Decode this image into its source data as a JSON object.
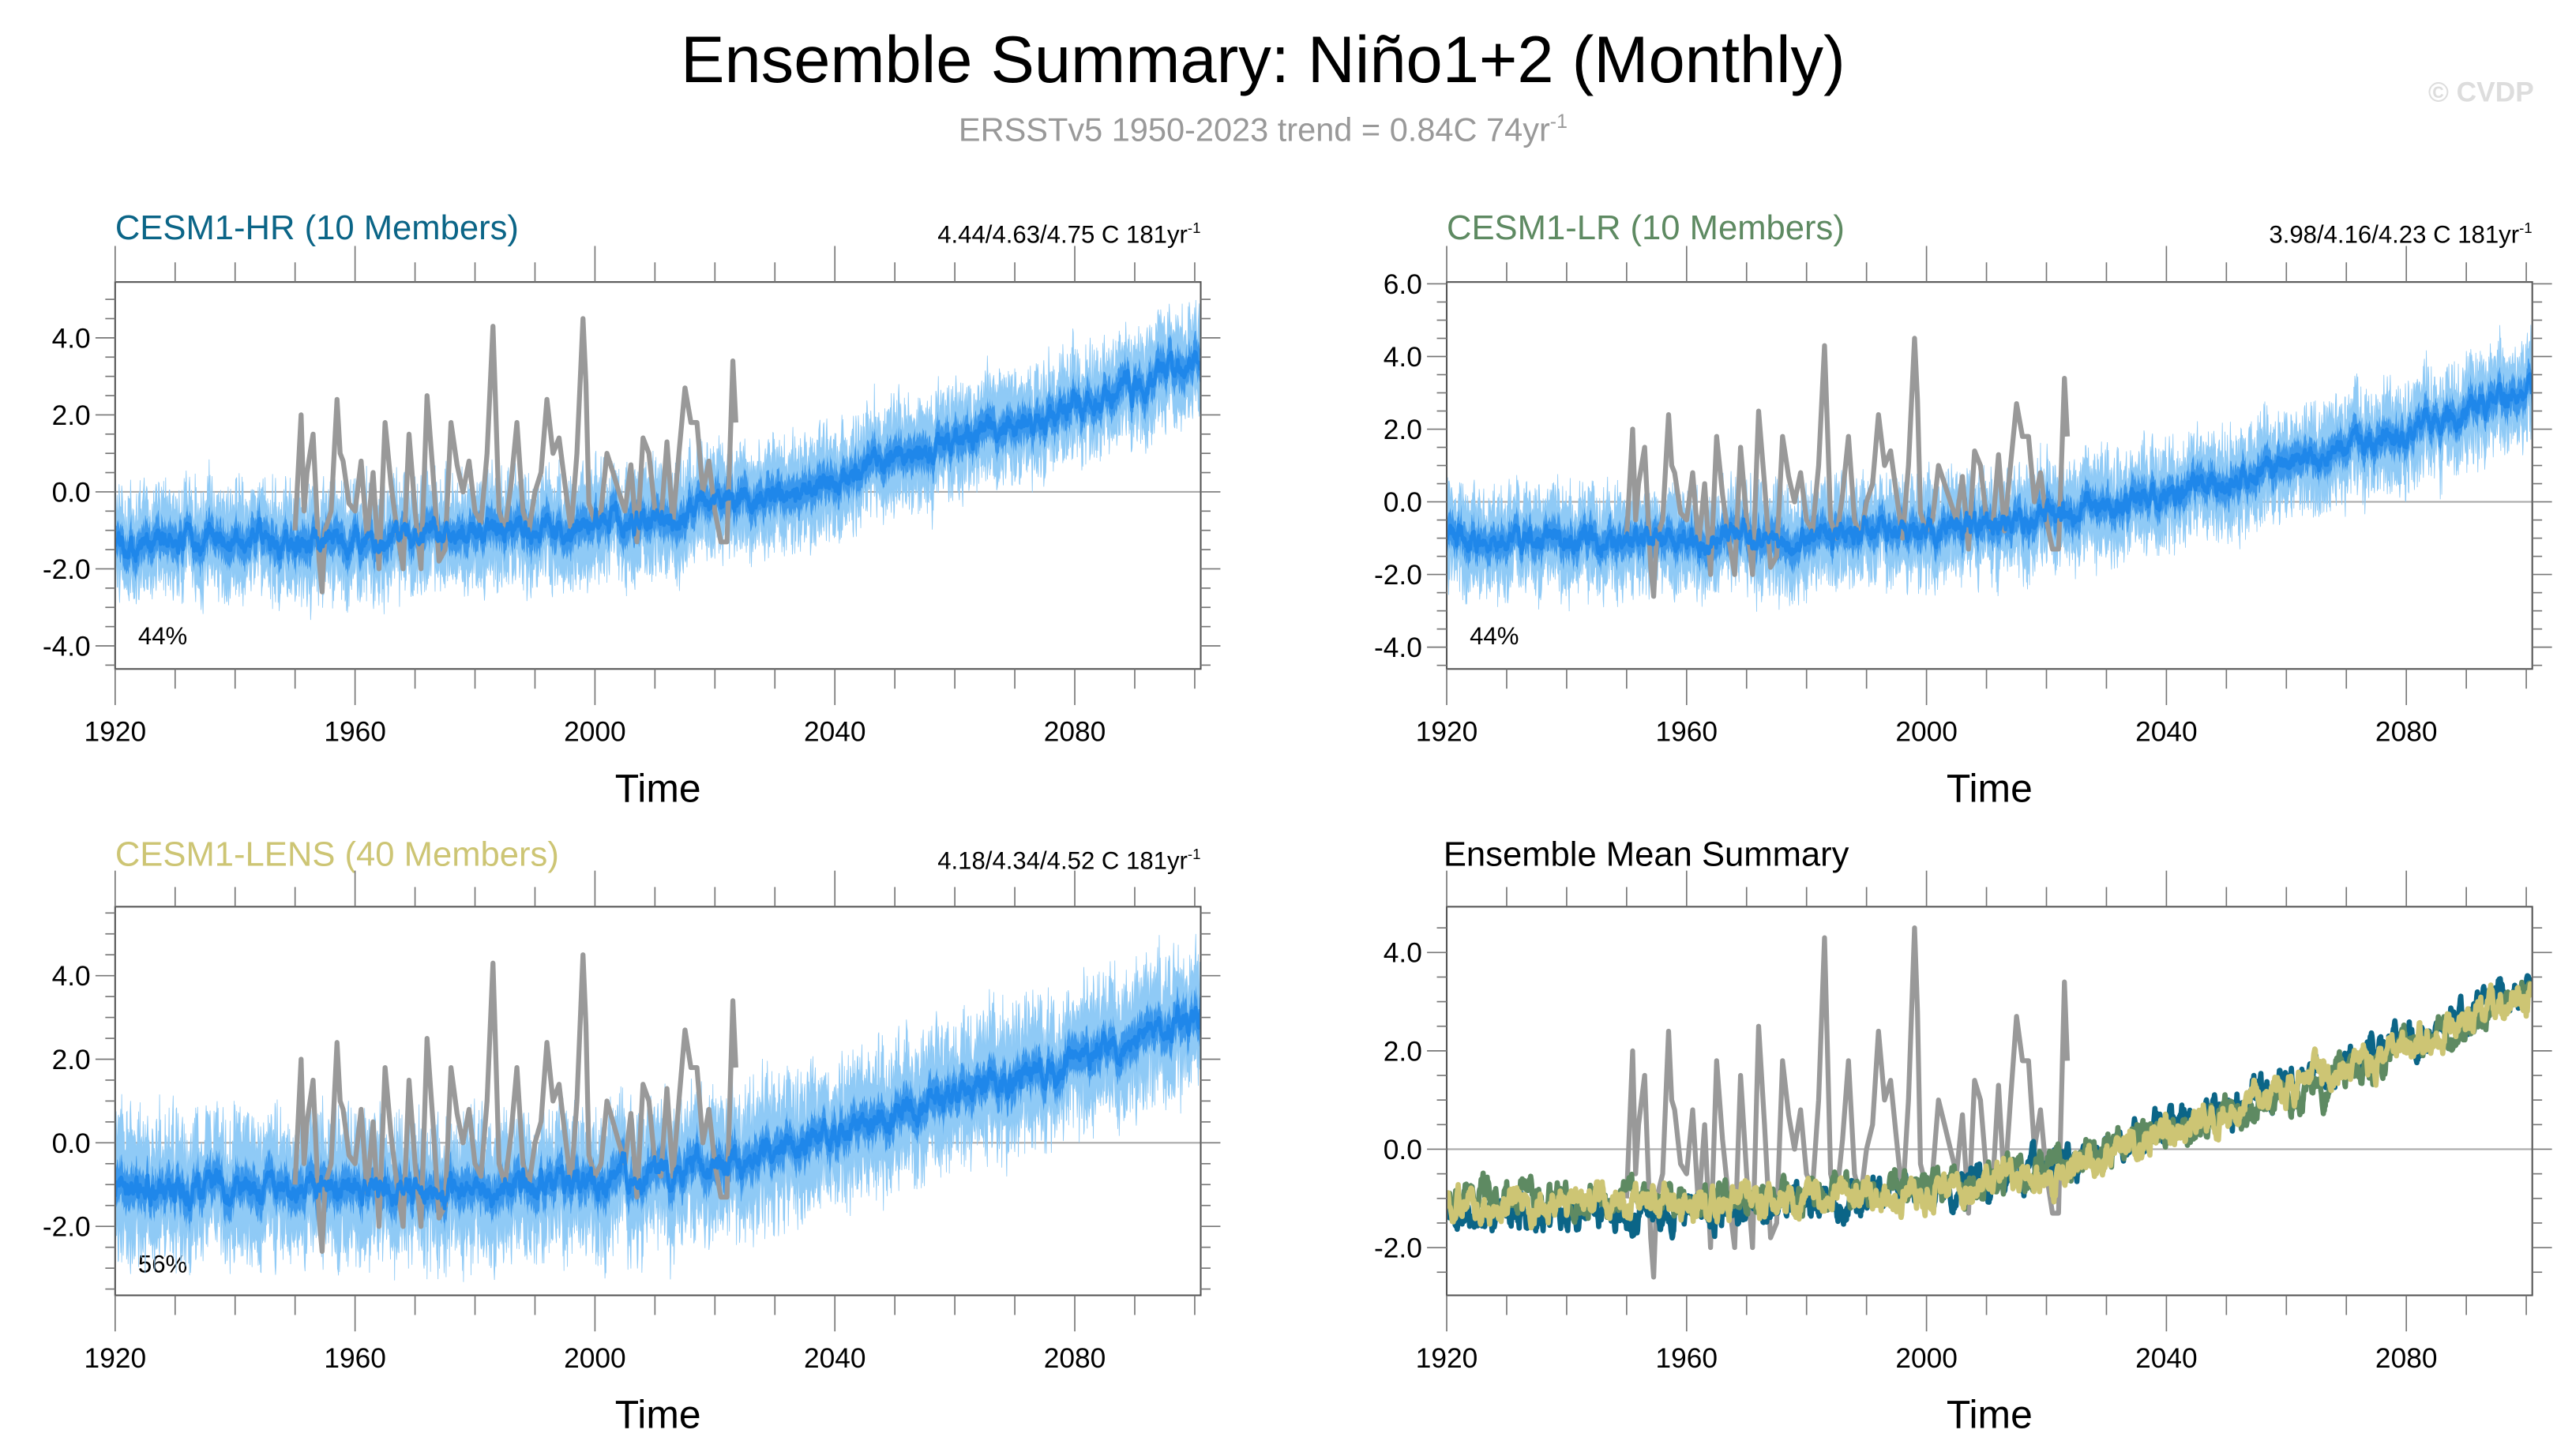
{
  "title": "Ensemble Summary: Niño1+2 (Monthly)",
  "subtitle": {
    "text": "ERSSTv5 1950-2023 trend = 0.84C 74yr",
    "exp": "-1"
  },
  "watermark": "© CVDP",
  "colors": {
    "obs": "#999999",
    "hr": "#0b6587",
    "lr": "#5e8a62",
    "lens": "#cdc574",
    "member_band": "#8fcaf6",
    "ens_mean": "#1f87ea"
  },
  "chart_data": [
    {
      "type": "line",
      "id": "hr",
      "title": "CESM1-HR (10 Members)",
      "right_text": "4.44/4.63/4.75 C 181yr",
      "right_exp": "-1",
      "annotation": "44%",
      "xlabel": "Time",
      "xlim": [
        1920,
        2101
      ],
      "ylim": [
        -4.6,
        5.45
      ],
      "xticks": [
        1920,
        1960,
        2000,
        2040,
        2080
      ],
      "yticks": [
        -4.0,
        -2.0,
        0.0,
        2.0,
        4.0
      ],
      "ensemble_mean_anchors": {
        "x": [
          1920,
          1950,
          1980,
          2000,
          2020,
          2040,
          2060,
          2080,
          2100
        ],
        "y": [
          -1.3,
          -1.2,
          -1.1,
          -0.9,
          -0.4,
          0.3,
          1.3,
          2.2,
          3.3
        ]
      },
      "member_spread": 1.0
    },
    {
      "type": "line",
      "id": "lr",
      "title": "CESM1-LR (10 Members)",
      "right_text": "3.98/4.16/4.23 C 181yr",
      "right_exp": "-1",
      "annotation": "44%",
      "xlabel": "Time",
      "xlim": [
        1920,
        2101
      ],
      "ylim": [
        -4.6,
        6.05
      ],
      "xticks": [
        1920,
        1960,
        2000,
        2040,
        2080
      ],
      "yticks": [
        -4.0,
        -2.0,
        0.0,
        2.0,
        4.0,
        6.0
      ],
      "ensemble_mean_anchors": {
        "x": [
          1920,
          1950,
          1980,
          2000,
          2020,
          2040,
          2060,
          2080,
          2100
        ],
        "y": [
          -1.0,
          -1.0,
          -1.0,
          -0.8,
          -0.4,
          0.2,
          1.0,
          1.9,
          3.0
        ]
      },
      "member_spread": 1.0
    },
    {
      "type": "line",
      "id": "lens",
      "title": "CESM1-LENS (40 Members)",
      "right_text": "4.18/4.34/4.52 C 181yr",
      "right_exp": "-1",
      "annotation": "56%",
      "xlabel": "Time",
      "xlim": [
        1920,
        2101
      ],
      "ylim": [
        -3.65,
        5.65
      ],
      "xticks": [
        1920,
        1960,
        2000,
        2040,
        2080
      ],
      "yticks": [
        -2.0,
        0.0,
        2.0,
        4.0
      ],
      "ensemble_mean_anchors": {
        "x": [
          1920,
          1950,
          1980,
          2000,
          2020,
          2040,
          2060,
          2080,
          2100
        ],
        "y": [
          -1.2,
          -1.1,
          -1.1,
          -0.9,
          -0.5,
          0.2,
          1.1,
          2.0,
          3.0
        ]
      },
      "member_spread": 1.2
    },
    {
      "type": "line",
      "id": "summary",
      "title": "Ensemble Mean Summary",
      "xlabel": "Time",
      "xlim": [
        1920,
        2101
      ],
      "ylim": [
        -2.97,
        4.93
      ],
      "xticks": [
        1920,
        1960,
        2000,
        2040,
        2080
      ],
      "yticks": [
        -2.0,
        0.0,
        2.0,
        4.0
      ],
      "series": [
        {
          "id": "hr",
          "anchors": {
            "x": [
              1920,
              1950,
              1980,
              2000,
              2020,
              2040,
              2060,
              2080,
              2100
            ],
            "y": [
              -1.4,
              -1.2,
              -1.1,
              -0.9,
              -0.4,
              0.4,
              1.3,
              2.2,
              3.3
            ]
          }
        },
        {
          "id": "lr",
          "anchors": {
            "x": [
              1920,
              1950,
              1980,
              2000,
              2020,
              2040,
              2060,
              2080,
              2100
            ],
            "y": [
              -1.0,
              -1.0,
              -1.0,
              -0.8,
              -0.4,
              0.3,
              1.1,
              2.0,
              3.1
            ]
          }
        },
        {
          "id": "lens",
          "anchors": {
            "x": [
              1920,
              1950,
              1980,
              2000,
              2020,
              2040,
              2060,
              2080,
              2100
            ],
            "y": [
              -1.1,
              -1.1,
              -1.1,
              -0.9,
              -0.5,
              0.3,
              1.2,
              2.1,
              3.1
            ]
          }
        }
      ]
    }
  ],
  "observations": {
    "name": "ERSSTv5",
    "x": [
      1950,
      1951,
      1951.5,
      1952,
      1953,
      1954,
      1954.5,
      1955,
      1956,
      1957,
      1957.5,
      1958,
      1959,
      1960,
      1961,
      1962,
      1963,
      1964,
      1965,
      1966,
      1967,
      1968,
      1969,
      1970,
      1971,
      1972,
      1973,
      1974,
      1975,
      1976,
      1977,
      1978,
      1979,
      1980,
      1981,
      1982,
      1983,
      1983.5,
      1984,
      1985,
      1986,
      1987,
      1988,
      1989,
      1990,
      1991,
      1992,
      1993,
      1994,
      1995,
      1996,
      1997,
      1998,
      1998.5,
      1999,
      2000,
      2001,
      2002,
      2003,
      2004,
      2005,
      2006,
      2007,
      2008,
      2009,
      2010,
      2011,
      2012,
      2013,
      2014,
      2015,
      2016,
      2017,
      2018,
      2019,
      2020,
      2021,
      2022,
      2023,
      2023.5
    ],
    "y": [
      -1.0,
      2.0,
      -0.5,
      0.5,
      1.5,
      -1.8,
      -2.6,
      -1.0,
      -0.5,
      2.4,
      1.0,
      0.8,
      -0.3,
      -0.5,
      0.8,
      -1.2,
      0.5,
      -2.0,
      1.8,
      0.2,
      -1.0,
      -2.0,
      1.5,
      -0.5,
      -2.0,
      2.5,
      0.5,
      -1.8,
      -1.5,
      1.8,
      0.7,
      0.0,
      0.8,
      -0.5,
      -0.8,
      1.0,
      4.3,
      2.0,
      -0.5,
      -1.0,
      0.2,
      1.8,
      -0.5,
      -1.0,
      0.0,
      0.5,
      2.4,
      1.0,
      1.4,
      0.2,
      -1.0,
      1.0,
      4.5,
      2.8,
      -0.3,
      -0.8,
      -0.5,
      1.0,
      0.5,
      0.0,
      -0.5,
      0.7,
      -1.3,
      1.4,
      1.0,
      -0.5,
      -0.8,
      1.3,
      -0.8,
      1.0,
      2.7,
      1.8,
      1.8,
      0.0,
      0.8,
      -0.5,
      -1.3,
      -1.3,
      3.4,
      1.8
    ]
  }
}
